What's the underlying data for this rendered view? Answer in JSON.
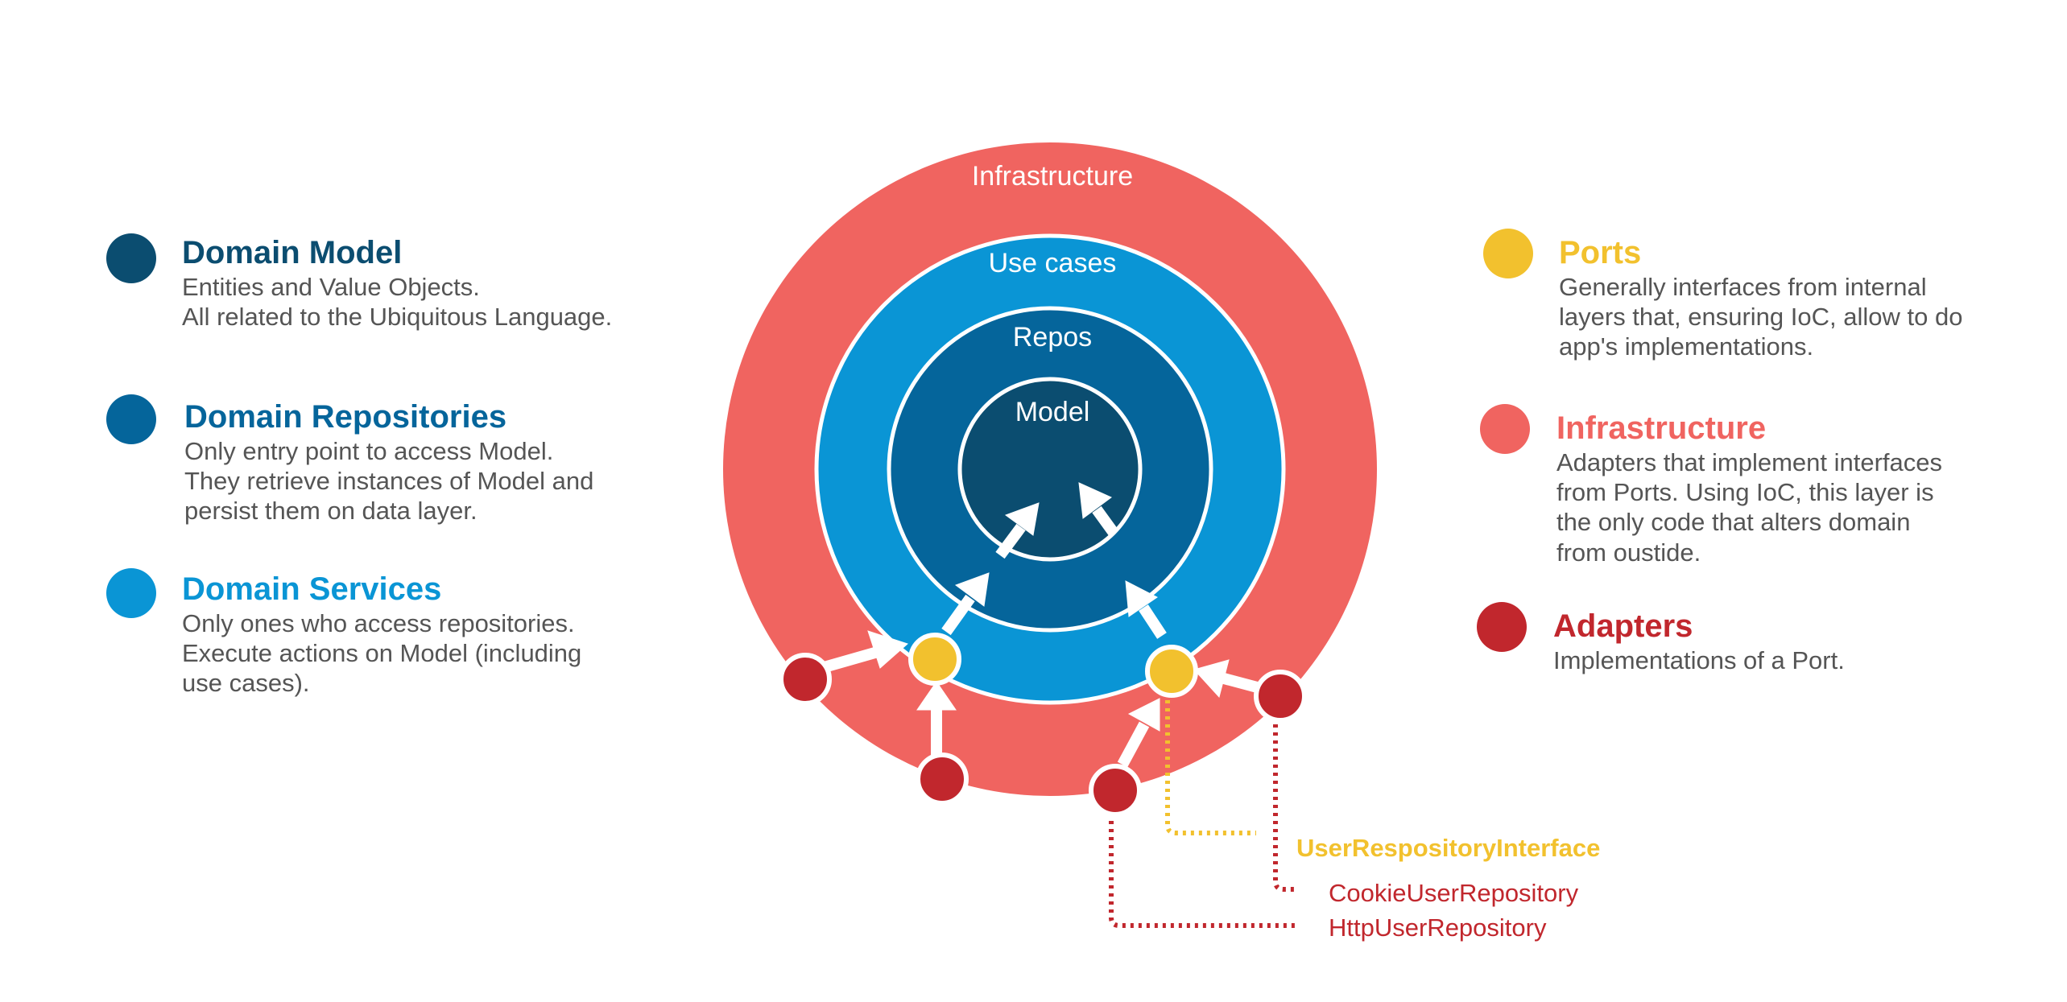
{
  "colors": {
    "domain_model": "#0b4d70",
    "domain_repositories": "#05659b",
    "domain_services": "#0a95d5",
    "ports": "#f2c12e",
    "infrastructure": "#f06460",
    "adapters": "#c1272d",
    "description_text": "#555555"
  },
  "rings": {
    "infrastructure": "Infrastructure",
    "use_cases": "Use cases",
    "repos": "Repos",
    "model": "Model"
  },
  "legend_left": [
    {
      "key": "domain_model",
      "title": "Domain Model",
      "lines": [
        "Entities and Value Objects.",
        "All related to the Ubiquitous Language."
      ]
    },
    {
      "key": "domain_repositories",
      "title": "Domain Repositories",
      "lines": [
        "Only entry point to access Model.",
        "They retrieve instances of Model and",
        "persist them on data layer."
      ]
    },
    {
      "key": "domain_services",
      "title": "Domain Services",
      "lines": [
        "Only ones who access repositories.",
        "Execute actions on Model (including",
        "use cases)."
      ]
    }
  ],
  "legend_right": [
    {
      "key": "ports",
      "title": "Ports",
      "lines": [
        "Generally interfaces from internal",
        "layers that, ensuring IoC, allow to do",
        "app's implementations."
      ]
    },
    {
      "key": "infrastructure",
      "title": "Infrastructure",
      "lines": [
        "Adapters that implement interfaces",
        "from Ports. Using IoC, this layer is",
        "the only code that alters domain",
        "from oustide."
      ]
    },
    {
      "key": "adapters",
      "title": "Adapters",
      "lines": [
        "Implementations of a Port."
      ]
    }
  ],
  "implementations": {
    "port_interface": "UserRespositoryInterface",
    "cookie_adapter": "CookieUserRepository",
    "http_adapter": "HttpUserRepository"
  }
}
